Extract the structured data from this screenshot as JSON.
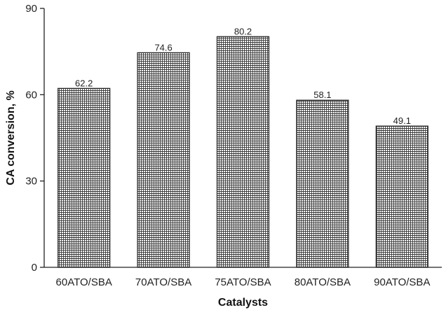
{
  "chart_data": {
    "type": "bar",
    "categories": [
      "60ATO/SBA",
      "70ATO/SBA",
      "75ATO/SBA",
      "80ATO/SBA",
      "90ATO/SBA"
    ],
    "values": [
      62.2,
      74.6,
      80.2,
      58.1,
      49.1
    ],
    "data_labels": [
      "62.2",
      "74.6",
      "80.2",
      "58.1",
      "49.1"
    ],
    "xlabel": "Catalysts",
    "ylabel": "CA conversion, %",
    "ylim": [
      0,
      90
    ],
    "yticks": [
      0,
      30,
      60,
      90
    ],
    "grid": false,
    "bar_pattern": "crosshatch",
    "bar_color": "#222222"
  }
}
